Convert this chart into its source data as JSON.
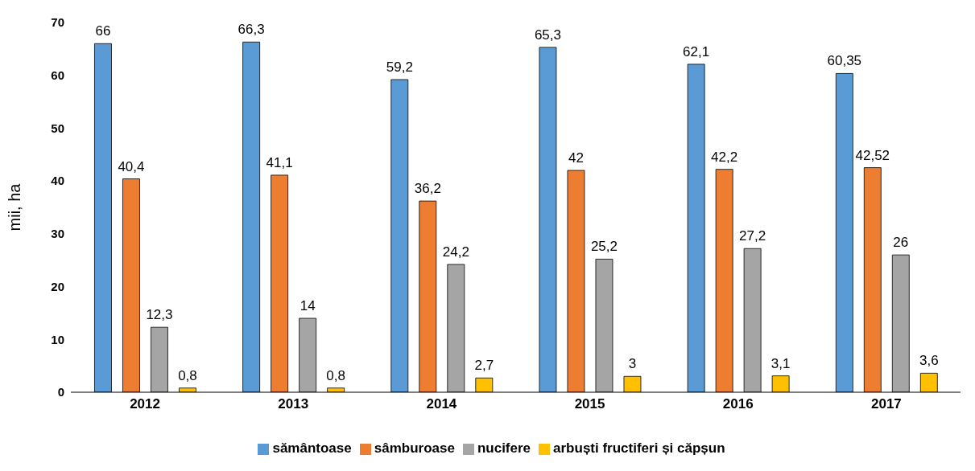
{
  "chart_data": {
    "type": "bar",
    "ylabel": "mii, ha",
    "categories": [
      "2012",
      "2013",
      "2014",
      "2015",
      "2016",
      "2017"
    ],
    "series": [
      {
        "name": "sământoase",
        "color": "#5b9bd5",
        "values": [
          66,
          66.3,
          59.2,
          65.3,
          62.1,
          60.35
        ],
        "value_labels": [
          "66",
          "66,3",
          "59,2",
          "65,3",
          "62,1",
          "60,35"
        ]
      },
      {
        "name": "sâmburoase",
        "color": "#ed7d31",
        "values": [
          40.4,
          41.1,
          36.2,
          42,
          42.2,
          42.52
        ],
        "value_labels": [
          "40,4",
          "41,1",
          "36,2",
          "42",
          "42,2",
          "42,52"
        ]
      },
      {
        "name": "nucifere",
        "color": "#a5a5a5",
        "values": [
          12.3,
          14,
          24.2,
          25.2,
          27.2,
          26
        ],
        "value_labels": [
          "12,3",
          "14",
          "24,2",
          "25,2",
          "27,2",
          "26"
        ]
      },
      {
        "name": "arbuști fructiferi și căpșun",
        "color": "#ffc000",
        "values": [
          0.8,
          0.8,
          2.7,
          3,
          3.1,
          3.6
        ],
        "value_labels": [
          "0,8",
          "0,8",
          "2,7",
          "3",
          "3,1",
          "3,6"
        ]
      }
    ],
    "ylim": [
      0,
      70
    ],
    "yticks": [
      0,
      10,
      20,
      30,
      40,
      50,
      60,
      70
    ],
    "grid": false,
    "legend": "bottom"
  }
}
